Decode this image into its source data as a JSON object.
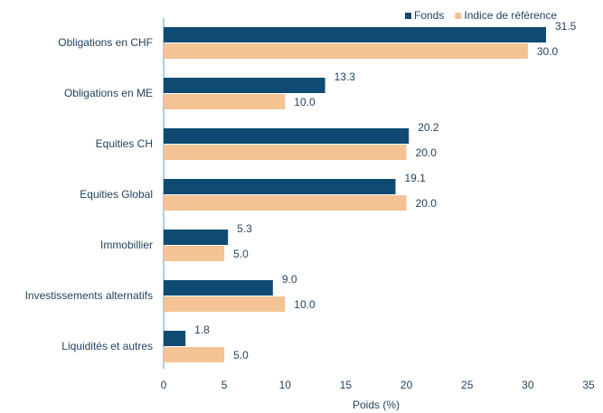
{
  "chart_data": {
    "type": "hbar",
    "categories": [
      "Obligations en CHF",
      "Obligations en ME",
      "Equities CH",
      "Equities Global",
      "Immobillier",
      "Investissements alternatifs",
      "Liquidités et autres"
    ],
    "series": [
      {
        "name": "Fonds",
        "color": "#0f4a73",
        "values": [
          31.5,
          13.3,
          20.2,
          19.1,
          5.3,
          9.0,
          1.8
        ],
        "value_labels": [
          "31.5",
          "13.3",
          "20.2",
          "19.1",
          "5.3",
          "9.0",
          "1.8"
        ]
      },
      {
        "name": "Indice de référence",
        "color": "#f4c393",
        "values": [
          30.0,
          10.0,
          20.0,
          20.0,
          5.0,
          10.0,
          5.0
        ],
        "value_labels": [
          "30.0",
          "10.0",
          "20.0",
          "20.0",
          "5.0",
          "10.0",
          "5.0"
        ]
      }
    ],
    "xlabel": "Poids (%)",
    "xlim": [
      0,
      35
    ],
    "xticks": [
      0,
      5,
      10,
      15,
      20,
      25,
      30,
      35
    ],
    "legend": "top-right"
  }
}
